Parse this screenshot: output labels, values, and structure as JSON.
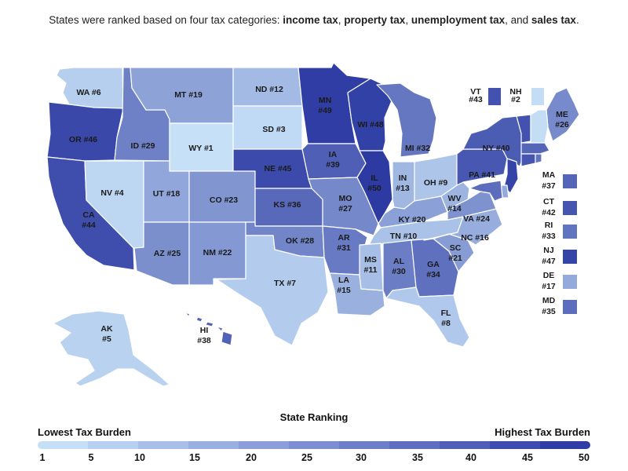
{
  "subtitle": {
    "prefix": "States were ranked based on four tax categories: ",
    "c1": "income tax",
    "c2": "property tax",
    "c3": "unemployment tax",
    "and": ", and ",
    "c4": "sales tax",
    "period": "."
  },
  "legend": {
    "title": "State Ranking",
    "low_label": "Lowest Tax Burden",
    "high_label": "Highest Tax Burden",
    "ticks": [
      "1",
      "5",
      "10",
      "15",
      "20",
      "25",
      "30",
      "35",
      "40",
      "45",
      "50"
    ],
    "colors": [
      "#c5dff6",
      "#b7cff0",
      "#a9bfe9",
      "#9aafe2",
      "#8c9fda",
      "#7d8fd2",
      "#6e7fca",
      "#5f6ec1",
      "#505eb8",
      "#3f4dae",
      "#2f3da4"
    ]
  },
  "states": [
    {
      "code": "WA",
      "label": "WA #6",
      "rank": 6
    },
    {
      "code": "OR",
      "label": "OR #46",
      "rank": 46
    },
    {
      "code": "CA",
      "label": "CA #44",
      "rank": 44
    },
    {
      "code": "NV",
      "label": "NV #4",
      "rank": 4
    },
    {
      "code": "ID",
      "label": "ID #29",
      "rank": 29
    },
    {
      "code": "MT",
      "label": "MT #19",
      "rank": 19
    },
    {
      "code": "WY",
      "label": "WY #1",
      "rank": 1
    },
    {
      "code": "UT",
      "label": "UT #18",
      "rank": 18
    },
    {
      "code": "AZ",
      "label": "AZ #25",
      "rank": 25
    },
    {
      "code": "CO",
      "label": "CO #23",
      "rank": 23
    },
    {
      "code": "NM",
      "label": "NM #22",
      "rank": 22
    },
    {
      "code": "ND",
      "label": "ND #12",
      "rank": 12
    },
    {
      "code": "SD",
      "label": "SD #3",
      "rank": 3
    },
    {
      "code": "NE",
      "label": "NE #45",
      "rank": 45
    },
    {
      "code": "KS",
      "label": "KS #36",
      "rank": 36
    },
    {
      "code": "OK",
      "label": "OK #28",
      "rank": 28
    },
    {
      "code": "TX",
      "label": "TX #7",
      "rank": 7
    },
    {
      "code": "MN",
      "label": "MN #49",
      "rank": 49
    },
    {
      "code": "IA",
      "label": "IA #39",
      "rank": 39
    },
    {
      "code": "MO",
      "label": "MO #27",
      "rank": 27
    },
    {
      "code": "AR",
      "label": "AR #31",
      "rank": 31
    },
    {
      "code": "LA",
      "label": "LA #15",
      "rank": 15
    },
    {
      "code": "WI",
      "label": "WI #48",
      "rank": 48
    },
    {
      "code": "IL",
      "label": "IL #50",
      "rank": 50
    },
    {
      "code": "MI",
      "label": "MI #32",
      "rank": 32
    },
    {
      "code": "IN",
      "label": "IN #13",
      "rank": 13
    },
    {
      "code": "OH",
      "label": "OH #9",
      "rank": 9
    },
    {
      "code": "KY",
      "label": "KY #20",
      "rank": 20
    },
    {
      "code": "TN",
      "label": "TN #10",
      "rank": 10
    },
    {
      "code": "MS",
      "label": "MS #11",
      "rank": 11
    },
    {
      "code": "AL",
      "label": "AL #30",
      "rank": 30
    },
    {
      "code": "GA",
      "label": "GA #34",
      "rank": 34
    },
    {
      "code": "FL",
      "label": "FL #8",
      "rank": 8
    },
    {
      "code": "SC",
      "label": "SC #21",
      "rank": 21
    },
    {
      "code": "NC",
      "label": "NC #16",
      "rank": 16
    },
    {
      "code": "VA",
      "label": "VA #24",
      "rank": 24
    },
    {
      "code": "WV",
      "label": "WV #14",
      "rank": 14
    },
    {
      "code": "PA",
      "label": "PA #41",
      "rank": 41
    },
    {
      "code": "NY",
      "label": "NY #40",
      "rank": 40
    },
    {
      "code": "ME",
      "label": "ME #26",
      "rank": 26
    },
    {
      "code": "VT",
      "label": "VT #43",
      "rank": 43
    },
    {
      "code": "NH",
      "label": "NH #2",
      "rank": 2
    },
    {
      "code": "MA",
      "label": "MA #37",
      "rank": 37
    },
    {
      "code": "CT",
      "label": "CT #42",
      "rank": 42
    },
    {
      "code": "RI",
      "label": "RI #33",
      "rank": 33
    },
    {
      "code": "NJ",
      "label": "NJ #47",
      "rank": 47
    },
    {
      "code": "DE",
      "label": "DE #17",
      "rank": 17
    },
    {
      "code": "MD",
      "label": "MD #35",
      "rank": 35
    },
    {
      "code": "AK",
      "label": "AK #5",
      "rank": 5
    },
    {
      "code": "HI",
      "label": "HI #38",
      "rank": 38
    }
  ]
}
